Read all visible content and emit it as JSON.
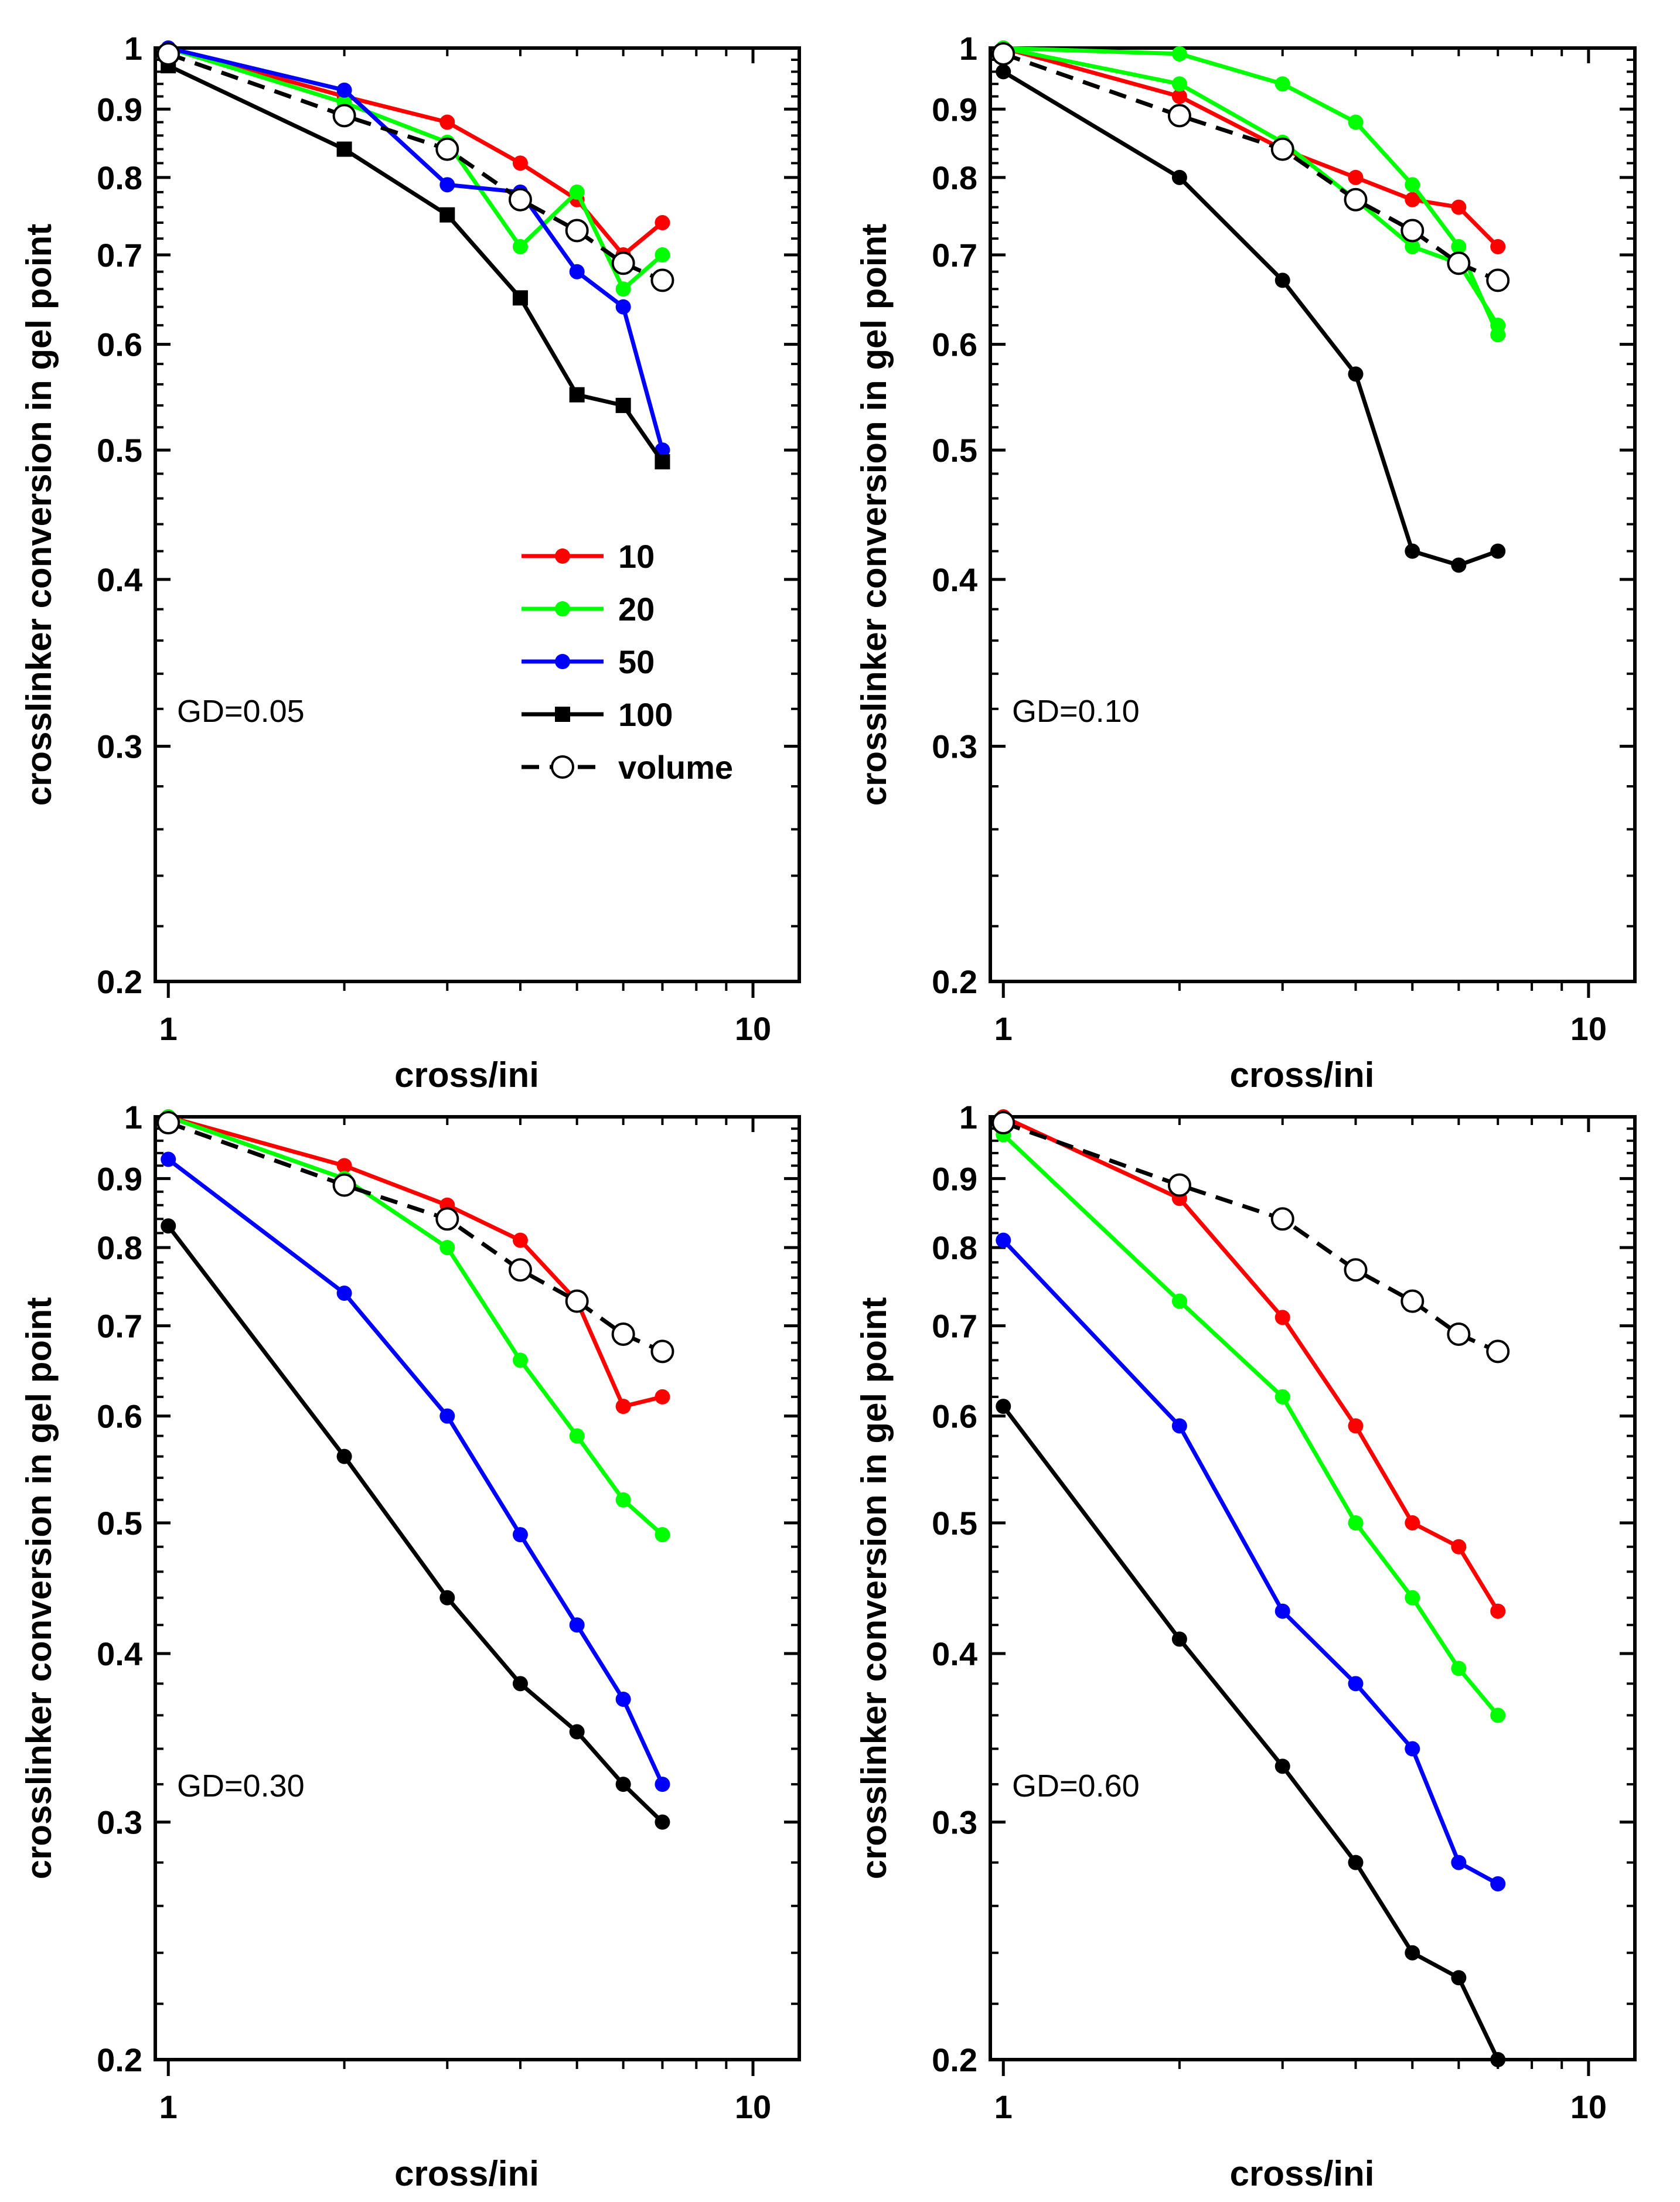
{
  "chart_data": [
    {
      "type": "line",
      "title": "",
      "annotation": "GD=0.05",
      "xlabel": "cross/ini",
      "ylabel": "crosslinker conversion in gel point",
      "xscale": "log",
      "yscale": "log",
      "xlim": [
        0.95,
        12
      ],
      "ylim": [
        0.2,
        1
      ],
      "xticks": [
        "1",
        "10"
      ],
      "yticks": [
        "0.2",
        "0.3",
        "0.4",
        "0.5",
        "0.6",
        "0.7",
        "0.8",
        "0.9",
        "1"
      ],
      "legend": "right-middle",
      "x": [
        1,
        2,
        3,
        4,
        5,
        6,
        7
      ],
      "series": [
        {
          "name": "10",
          "color": "#ff0000",
          "marker": "circle",
          "dash": false,
          "values": [
            1.0,
            0.92,
            0.88,
            0.82,
            0.77,
            0.7,
            0.74
          ]
        },
        {
          "name": "20",
          "color": "#00ff00",
          "marker": "circle",
          "dash": false,
          "values": [
            1.0,
            0.91,
            0.85,
            0.71,
            0.78,
            0.66,
            0.7
          ]
        },
        {
          "name": "50",
          "color": "#0000ff",
          "marker": "circle",
          "dash": false,
          "values": [
            1.0,
            0.93,
            0.79,
            0.78,
            0.68,
            0.64,
            0.5
          ]
        },
        {
          "name": "100",
          "color": "#000000",
          "marker": "square",
          "dash": false,
          "values": [
            0.97,
            0.84,
            0.75,
            0.65,
            0.55,
            0.54,
            0.49
          ]
        },
        {
          "name": "volume",
          "color": "#000000",
          "marker": "open-circle",
          "dash": true,
          "values": [
            0.99,
            0.89,
            0.84,
            0.77,
            0.73,
            0.69,
            0.67
          ]
        }
      ]
    },
    {
      "type": "line",
      "title": "",
      "annotation": "GD=0.10",
      "xlabel": "cross/ini",
      "ylabel": "crosslinker conversion in gel point",
      "xscale": "log",
      "yscale": "log",
      "xlim": [
        0.95,
        12
      ],
      "ylim": [
        0.2,
        1
      ],
      "xticks": [
        "1",
        "10"
      ],
      "yticks": [
        "0.2",
        "0.3",
        "0.4",
        "0.5",
        "0.6",
        "0.7",
        "0.8",
        "0.9",
        "1"
      ],
      "legend": "none",
      "x": [
        1,
        2,
        3,
        4,
        5,
        6,
        7
      ],
      "series": [
        {
          "name": "10",
          "color": "#ff0000",
          "marker": "circle",
          "dash": false,
          "values": [
            1.0,
            0.92,
            0.84,
            0.8,
            0.77,
            0.76,
            0.71
          ]
        },
        {
          "name": "20",
          "color": "#00ff00",
          "marker": "circle",
          "dash": false,
          "values": [
            1.0,
            0.94,
            0.85,
            0.77,
            0.71,
            0.69,
            0.62
          ]
        },
        {
          "name": "50",
          "color": "#00ff00",
          "marker": "circle",
          "dash": false,
          "values": [
            1.0,
            0.99,
            0.94,
            0.88,
            0.79,
            0.71,
            0.61
          ]
        },
        {
          "name": "100",
          "color": "#000000",
          "marker": "circle",
          "dash": false,
          "values": [
            0.96,
            0.8,
            0.67,
            0.57,
            0.42,
            0.41,
            0.42
          ]
        },
        {
          "name": "volume",
          "color": "#000000",
          "marker": "open-circle",
          "dash": true,
          "values": [
            0.99,
            0.89,
            0.84,
            0.77,
            0.73,
            0.69,
            0.67
          ]
        }
      ]
    },
    {
      "type": "line",
      "title": "",
      "annotation": "GD=0.30",
      "xlabel": "cross/ini",
      "ylabel": "crosslinker conversion in gel point",
      "xscale": "log",
      "yscale": "log",
      "xlim": [
        0.95,
        12
      ],
      "ylim": [
        0.2,
        1
      ],
      "xticks": [
        "1",
        "10"
      ],
      "yticks": [
        "0.2",
        "0.3",
        "0.4",
        "0.5",
        "0.6",
        "0.7",
        "0.8",
        "0.9",
        "1"
      ],
      "legend": "none",
      "x": [
        1,
        2,
        3,
        4,
        5,
        6,
        7
      ],
      "series": [
        {
          "name": "10",
          "color": "#ff0000",
          "marker": "circle",
          "dash": false,
          "values": [
            1.0,
            0.92,
            0.86,
            0.81,
            0.73,
            0.61,
            0.62
          ]
        },
        {
          "name": "20",
          "color": "#00ff00",
          "marker": "circle",
          "dash": false,
          "values": [
            1.0,
            0.9,
            0.8,
            0.66,
            0.58,
            0.52,
            0.49
          ]
        },
        {
          "name": "50",
          "color": "#0000ff",
          "marker": "circle",
          "dash": false,
          "values": [
            0.93,
            0.74,
            0.6,
            0.49,
            0.42,
            0.37,
            0.32
          ]
        },
        {
          "name": "100",
          "color": "#000000",
          "marker": "circle",
          "dash": false,
          "values": [
            0.83,
            0.56,
            0.44,
            0.38,
            0.35,
            0.32,
            0.3
          ]
        },
        {
          "name": "volume",
          "color": "#000000",
          "marker": "open-circle",
          "dash": true,
          "values": [
            0.99,
            0.89,
            0.84,
            0.77,
            0.73,
            0.69,
            0.67
          ]
        }
      ]
    },
    {
      "type": "line",
      "title": "",
      "annotation": "GD=0.60",
      "xlabel": "cross/ini",
      "ylabel": "crosslinker conversion in gel point",
      "xscale": "log",
      "yscale": "log",
      "xlim": [
        0.95,
        12
      ],
      "ylim": [
        0.2,
        1
      ],
      "xticks": [
        "1",
        "10"
      ],
      "yticks": [
        "0.2",
        "0.3",
        "0.4",
        "0.5",
        "0.6",
        "0.7",
        "0.8",
        "0.9",
        "1"
      ],
      "legend": "none",
      "x": [
        1,
        2,
        3,
        4,
        5,
        6,
        7
      ],
      "series": [
        {
          "name": "10",
          "color": "#ff0000",
          "marker": "circle",
          "dash": false,
          "values": [
            1.0,
            0.87,
            0.71,
            0.59,
            0.5,
            0.48,
            0.43
          ]
        },
        {
          "name": "20",
          "color": "#00ff00",
          "marker": "circle",
          "dash": false,
          "values": [
            0.97,
            0.73,
            0.62,
            0.5,
            0.44,
            0.39,
            0.36
          ]
        },
        {
          "name": "50",
          "color": "#0000ff",
          "marker": "circle",
          "dash": false,
          "values": [
            0.81,
            0.59,
            0.43,
            0.38,
            0.34,
            0.28,
            0.27
          ]
        },
        {
          "name": "100",
          "color": "#000000",
          "marker": "circle",
          "dash": false,
          "values": [
            0.61,
            0.41,
            0.33,
            0.28,
            0.24,
            0.23,
            0.2
          ]
        },
        {
          "name": "volume",
          "color": "#000000",
          "marker": "open-circle",
          "dash": true,
          "values": [
            0.99,
            0.89,
            0.84,
            0.77,
            0.73,
            0.69,
            0.67
          ]
        }
      ]
    }
  ]
}
